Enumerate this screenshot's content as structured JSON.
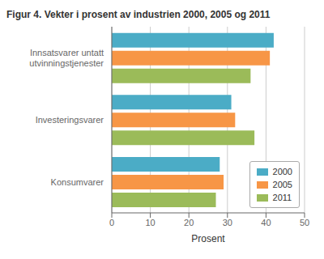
{
  "chart_data": {
    "type": "bar",
    "orientation": "horizontal",
    "title": "Figur 4. Vekter i prosent av industrien 2000, 2005 og 2011",
    "categories": [
      "Konsumvarer",
      "Investeringsvarer",
      "Innsatsvarer untatt\nutvinningstjenester"
    ],
    "series": [
      {
        "name": "2000",
        "color": "#4bacc6",
        "values": [
          28,
          31,
          42
        ]
      },
      {
        "name": "2005",
        "color": "#f79646",
        "values": [
          29,
          32,
          41
        ]
      },
      {
        "name": "2011",
        "color": "#9bbb59",
        "values": [
          27,
          37,
          36
        ]
      }
    ],
    "xlabel": "Prosent",
    "xlim": [
      0,
      50
    ],
    "xticks": [
      0,
      10,
      20,
      30,
      40,
      50
    ],
    "grid": true,
    "legend": "lower right"
  }
}
